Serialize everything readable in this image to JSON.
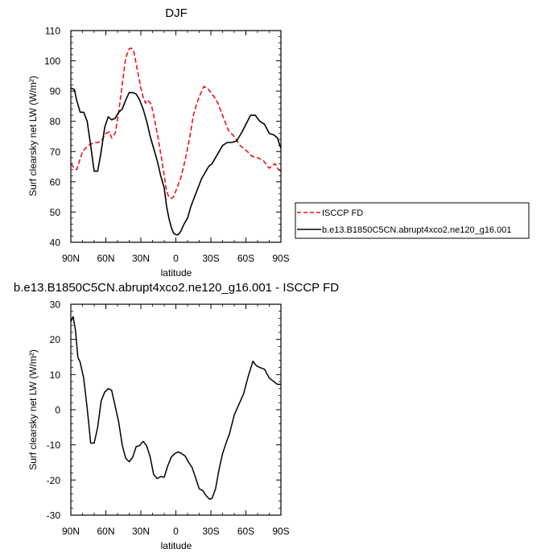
{
  "chart_data": [
    {
      "type": "line",
      "title": "DJF",
      "xlabel": "latitude",
      "ylabel": "Surf clearsky net LW (W/m²)",
      "xlim": [
        90,
        -90
      ],
      "ylim": [
        40,
        110
      ],
      "xticks": [
        90,
        60,
        30,
        0,
        -30,
        -60,
        -90
      ],
      "xtick_labels": [
        "90N",
        "60N",
        "30N",
        "0",
        "30S",
        "60S",
        "90S"
      ],
      "yticks": [
        40,
        50,
        60,
        70,
        80,
        90,
        100,
        110
      ],
      "ytick_labels": [
        "40",
        "50",
        "60",
        "70",
        "80",
        "90",
        "100",
        "110"
      ],
      "series": [
        {
          "name": "ISCCP FD",
          "color": "#e8121e",
          "style": "dashed",
          "x": [
            90,
            87,
            85,
            80,
            75,
            70,
            67,
            64,
            60,
            57,
            55,
            52,
            49,
            46,
            43,
            40,
            38,
            36,
            34,
            32,
            30,
            28,
            26,
            24,
            21,
            18,
            15,
            12,
            10,
            8,
            6,
            4,
            2,
            0,
            -2,
            -4,
            -6,
            -9,
            -12,
            -15,
            -18,
            -21,
            -24,
            -27,
            -30,
            -33,
            -36,
            -40,
            -45,
            -50,
            -55,
            -60,
            -65,
            -70,
            -75,
            -80,
            -85,
            -88,
            -90
          ],
          "y": [
            66,
            64.5,
            64,
            70,
            72,
            73,
            73,
            73.5,
            76,
            76.5,
            74.5,
            76,
            83,
            92,
            101,
            104,
            104.2,
            103,
            99,
            95,
            91,
            88,
            86,
            87,
            85.5,
            80,
            74,
            67,
            62,
            57,
            55,
            54.5,
            55,
            57,
            59,
            61,
            64,
            69,
            75,
            82,
            86,
            89,
            91.5,
            91,
            89.5,
            88,
            86,
            82,
            77,
            75,
            72,
            70.5,
            68.5,
            68,
            67,
            64.5,
            66,
            64,
            63.5
          ]
        },
        {
          "name": "b.e13.B1850C5CN.abrupt4xco2.ne120_g16.001",
          "color": "#000000",
          "style": "solid",
          "x": [
            90,
            87,
            85,
            82,
            79,
            76,
            73,
            70,
            67,
            64,
            61,
            58,
            55,
            52,
            49,
            46,
            43,
            40,
            37,
            34,
            31,
            28,
            25,
            22,
            19,
            16,
            13,
            10,
            8,
            6,
            4,
            2,
            0,
            -2,
            -4,
            -7,
            -10,
            -13,
            -16,
            -19,
            -22,
            -25,
            -28,
            -31,
            -34,
            -37,
            -40,
            -44,
            -48,
            -52,
            -56,
            -60,
            -64,
            -68,
            -72,
            -76,
            -80,
            -84,
            -87,
            -90
          ],
          "y": [
            91,
            90.5,
            87,
            83,
            83,
            80,
            72,
            63.5,
            63.5,
            70,
            78,
            81.5,
            80.5,
            81,
            83,
            84,
            87,
            89.5,
            89.5,
            89,
            87,
            84,
            80,
            75,
            71,
            67,
            62,
            58,
            52,
            48,
            45,
            43,
            42.5,
            42.5,
            43.5,
            46,
            48,
            52,
            55,
            58,
            61,
            63,
            65,
            66,
            68,
            70,
            72,
            73,
            73,
            73.5,
            76,
            79,
            82,
            82,
            80,
            79,
            76,
            75.5,
            74.5,
            71
          ]
        }
      ],
      "legend": {
        "placement": "right",
        "entries": [
          "ISCCP FD",
          "b.e13.B1850C5CN.abrupt4xco2.ne120_g16.001"
        ]
      }
    },
    {
      "type": "line",
      "title": "b.e13.B1850C5CN.abrupt4xco2.ne120_g16.001 - ISCCP FD",
      "xlabel": "latitude",
      "ylabel": "Surf clearsky net LW (W/m²)",
      "xlim": [
        90,
        -90
      ],
      "ylim": [
        -30,
        30
      ],
      "xticks": [
        90,
        60,
        30,
        0,
        -30,
        -60,
        -90
      ],
      "xtick_labels": [
        "90N",
        "60N",
        "30N",
        "0",
        "30S",
        "60S",
        "90S"
      ],
      "yticks": [
        -30,
        -20,
        -10,
        0,
        10,
        20,
        30
      ],
      "ytick_labels": [
        "-30",
        "-20",
        "-10",
        "0",
        "10",
        "20",
        "30"
      ],
      "series": [
        {
          "name": "b.e13.B1850C5CN.abrupt4xco2.ne120_g16.001 - ISCCP FD",
          "color": "#000000",
          "style": "solid",
          "x": [
            90,
            88,
            86,
            84,
            82,
            79,
            76,
            73,
            70,
            67,
            64,
            61,
            58,
            55,
            52,
            49,
            46,
            43,
            40,
            37,
            34,
            31,
            28,
            25,
            22,
            19,
            16,
            13,
            10,
            7,
            4,
            1,
            -2,
            -5,
            -8,
            -11,
            -14,
            -17,
            -20,
            -23,
            -26,
            -29,
            -31,
            -34,
            -37,
            -40,
            -43,
            -46,
            -50,
            -54,
            -58,
            -62,
            -66,
            -69,
            -72,
            -76,
            -80,
            -84,
            -87,
            -90
          ],
          "y": [
            25,
            26.5,
            22.5,
            15,
            13.5,
            9,
            0.5,
            -9.5,
            -9.5,
            -5,
            2.5,
            5,
            6,
            5.5,
            1,
            -3.5,
            -10,
            -13.8,
            -14.8,
            -13.5,
            -10.5,
            -10.2,
            -9,
            -10.3,
            -13.5,
            -18.5,
            -19.6,
            -19,
            -19.2,
            -16,
            -13.5,
            -12.5,
            -12,
            -12.5,
            -13.2,
            -15,
            -16.5,
            -19.5,
            -22.5,
            -23,
            -24.5,
            -25.5,
            -25.2,
            -22.5,
            -17,
            -12.5,
            -9.5,
            -6.8,
            -1.5,
            1.5,
            4.5,
            9.5,
            13.8,
            12.5,
            12,
            11.5,
            9,
            8,
            7.2,
            7.2
          ]
        }
      ]
    }
  ]
}
